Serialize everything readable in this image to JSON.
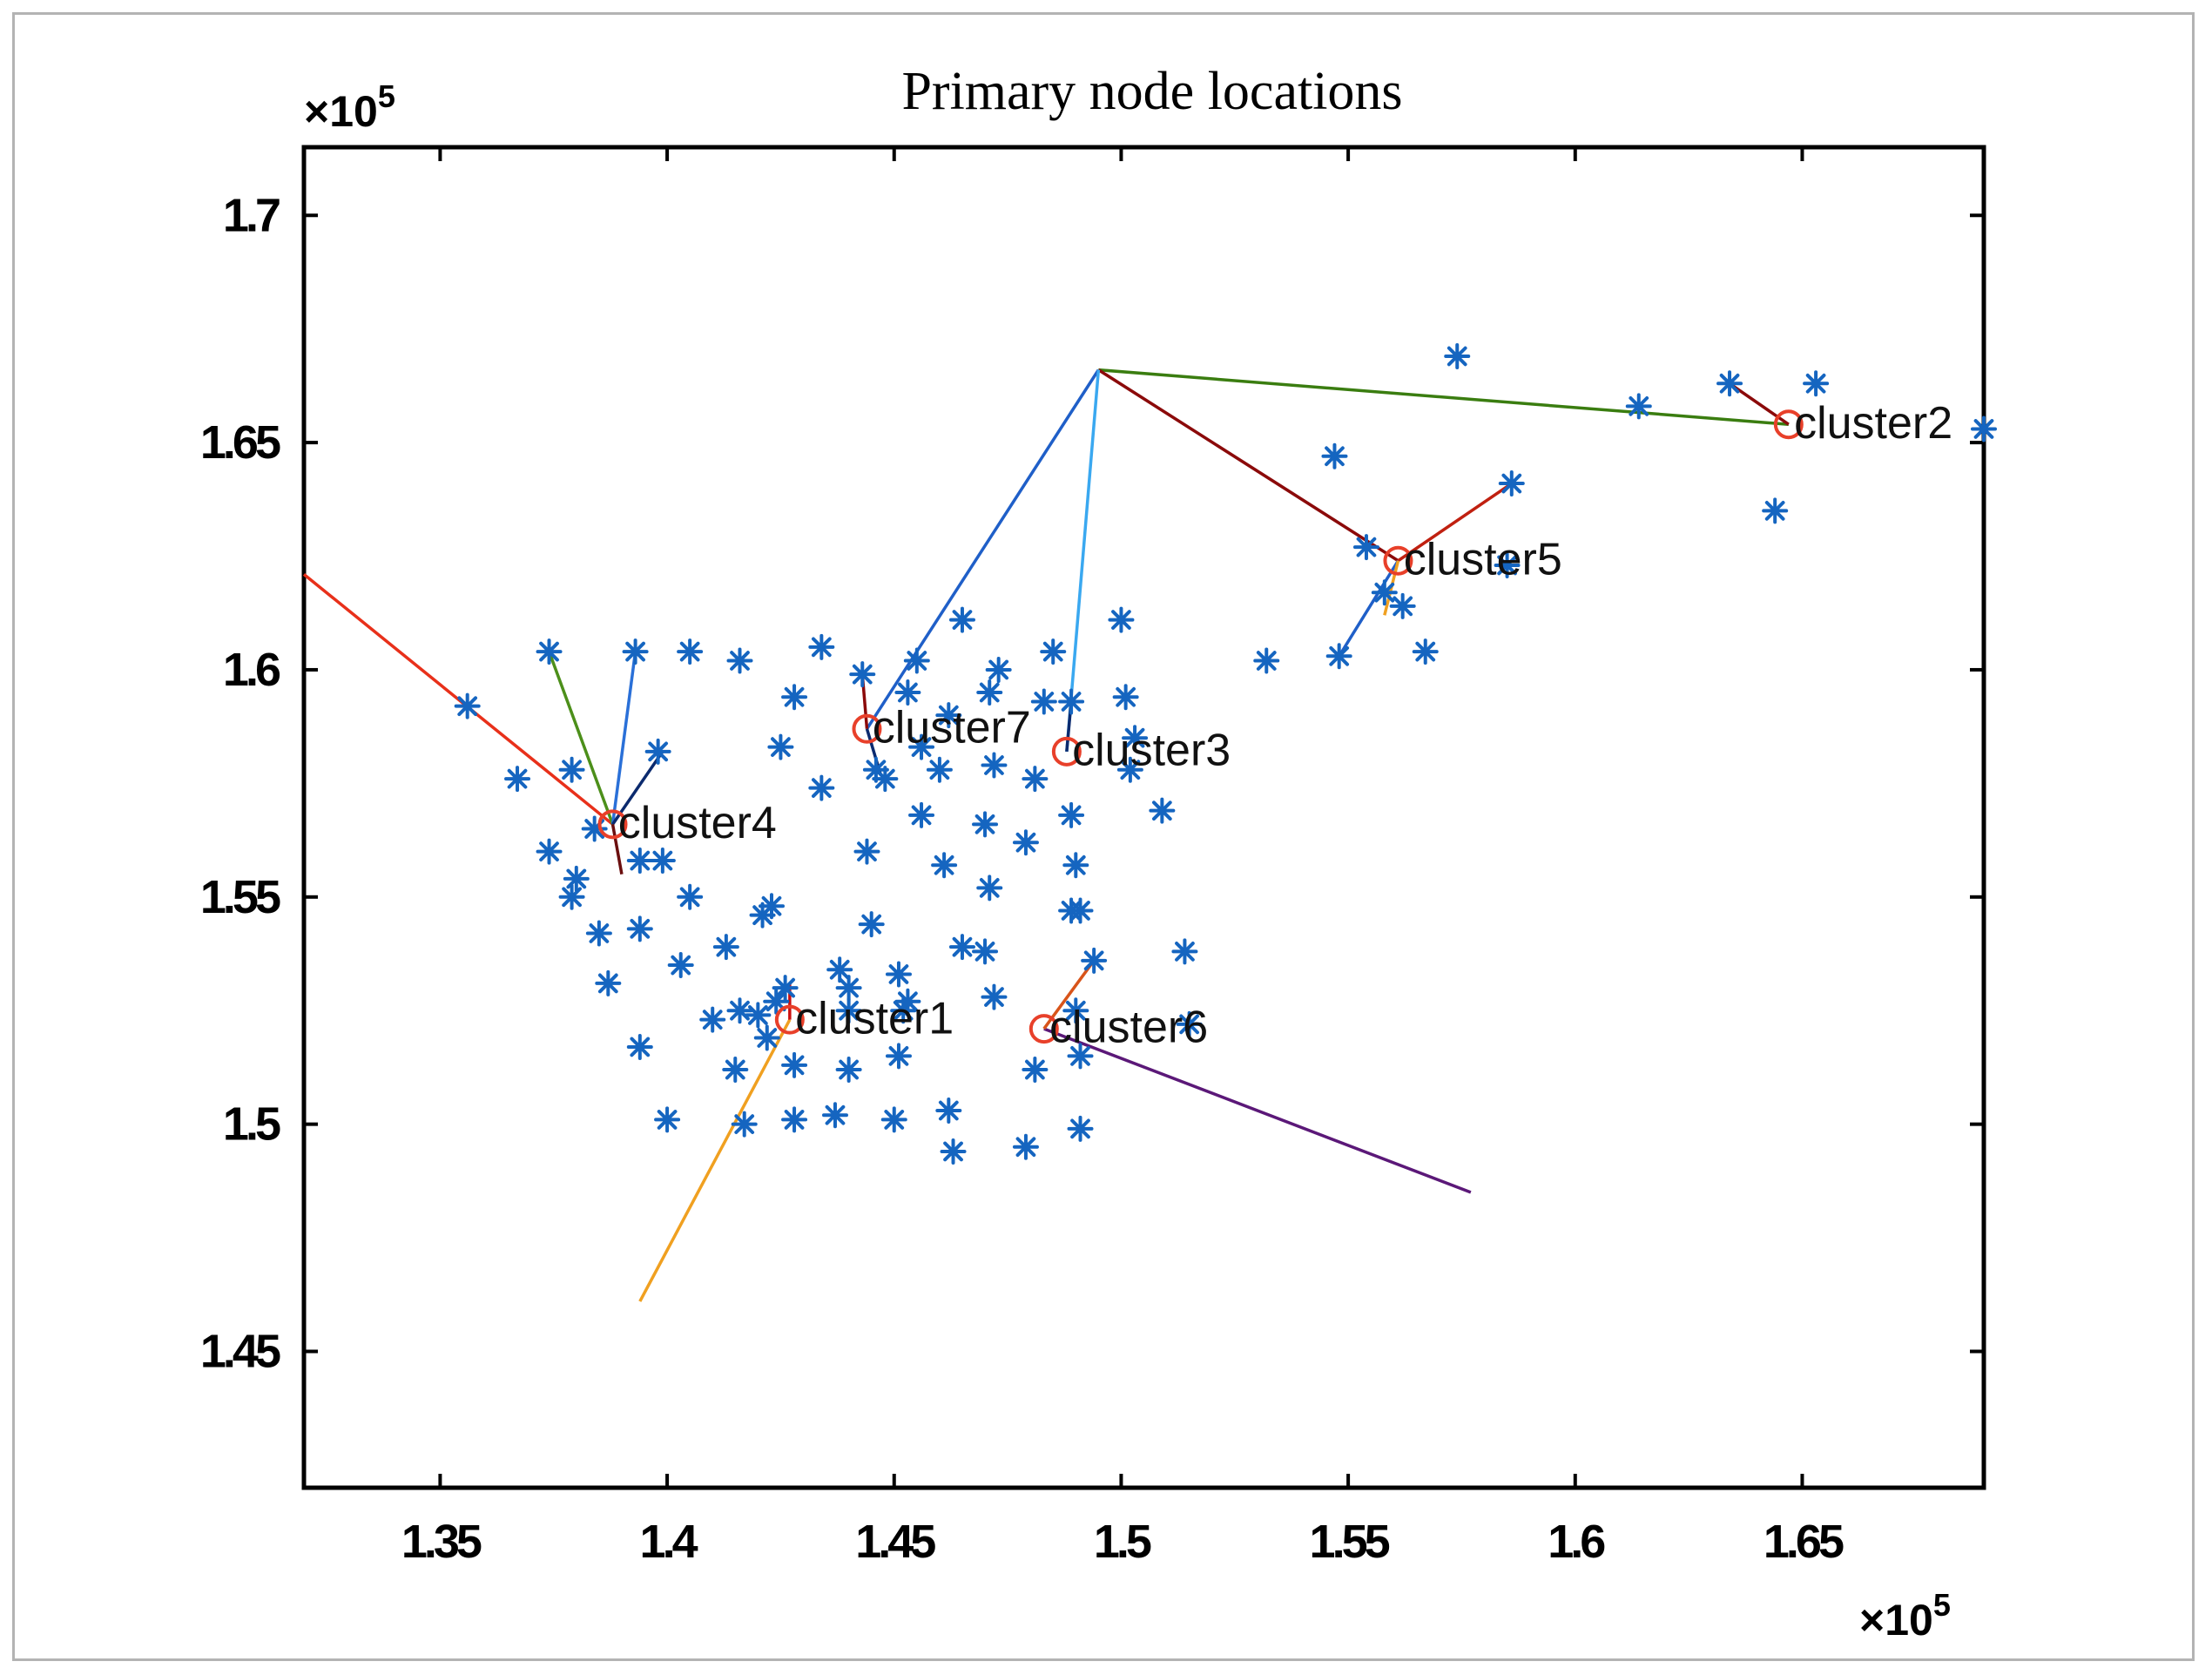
{
  "chart_data": {
    "type": "scatter",
    "title": "Primary node locations",
    "xlabel": "",
    "ylabel": "",
    "xlim": [
      132000,
      169000
    ],
    "ylim": [
      142000,
      171500
    ],
    "grid": false,
    "x_ticks": [
      {
        "value": 135000,
        "label": "1.35"
      },
      {
        "value": 140000,
        "label": "1.4"
      },
      {
        "value": 145000,
        "label": "1.45"
      },
      {
        "value": 150000,
        "label": "1.5"
      },
      {
        "value": 155000,
        "label": "1.55"
      },
      {
        "value": 160000,
        "label": "1.6"
      },
      {
        "value": 165000,
        "label": "1.65"
      }
    ],
    "y_ticks": [
      {
        "value": 145000,
        "label": "1.45"
      },
      {
        "value": 150000,
        "label": "1.5"
      },
      {
        "value": 155000,
        "label": "1.55"
      },
      {
        "value": 160000,
        "label": "1.6"
      },
      {
        "value": 165000,
        "label": "1.65"
      },
      {
        "value": 170000,
        "label": "1.7"
      }
    ],
    "x_multiplier": {
      "prefix": "×10",
      "exponent": "5"
    },
    "y_multiplier": {
      "prefix": "×10",
      "exponent": "5"
    },
    "node_color": "#1565c0",
    "cluster_color": "#e8402a",
    "nodes": [
      [
        135600,
        159200
      ],
      [
        137400,
        160400
      ],
      [
        139300,
        160400
      ],
      [
        140500,
        160400
      ],
      [
        141600,
        160200
      ],
      [
        136700,
        157600
      ],
      [
        137900,
        157800
      ],
      [
        139800,
        158200
      ],
      [
        137400,
        156000
      ],
      [
        138000,
        155400
      ],
      [
        138400,
        156500
      ],
      [
        139900,
        155800
      ],
      [
        140500,
        155000
      ],
      [
        137900,
        155000
      ],
      [
        138500,
        154200
      ],
      [
        139400,
        154300
      ],
      [
        138700,
        153100
      ],
      [
        140300,
        153500
      ],
      [
        141300,
        153900
      ],
      [
        142100,
        154600
      ],
      [
        142300,
        154800
      ],
      [
        139400,
        151700
      ],
      [
        140000,
        150100
      ],
      [
        141000,
        152300
      ],
      [
        141600,
        152500
      ],
      [
        141500,
        151200
      ],
      [
        142000,
        152400
      ],
      [
        141700,
        150000
      ],
      [
        142400,
        152700
      ],
      [
        142600,
        153000
      ],
      [
        142200,
        151900
      ],
      [
        142800,
        151300
      ],
      [
        142800,
        150100
      ],
      [
        143700,
        150200
      ],
      [
        144000,
        151200
      ],
      [
        144000,
        152500
      ],
      [
        143800,
        153400
      ],
      [
        144000,
        153000
      ],
      [
        144500,
        154400
      ],
      [
        145200,
        152500
      ],
      [
        145000,
        150100
      ],
      [
        145100,
        151500
      ],
      [
        145300,
        152700
      ],
      [
        145100,
        153300
      ],
      [
        146200,
        150300
      ],
      [
        146300,
        149400
      ],
      [
        146500,
        153900
      ],
      [
        147000,
        153800
      ],
      [
        147100,
        155200
      ],
      [
        147200,
        152800
      ],
      [
        146100,
        155700
      ],
      [
        144400,
        156000
      ],
      [
        143400,
        157400
      ],
      [
        144600,
        157800
      ],
      [
        145600,
        156800
      ],
      [
        146000,
        157800
      ],
      [
        147200,
        157900
      ],
      [
        147900,
        156200
      ],
      [
        147000,
        156600
      ],
      [
        148100,
        157600
      ],
      [
        148900,
        156800
      ],
      [
        149000,
        155700
      ],
      [
        148900,
        154700
      ],
      [
        149400,
        153600
      ],
      [
        148100,
        151200
      ],
      [
        149000,
        152500
      ],
      [
        149100,
        151500
      ],
      [
        147900,
        149500
      ],
      [
        149100,
        149900
      ],
      [
        151400,
        153800
      ],
      [
        150900,
        156900
      ],
      [
        150200,
        157800
      ],
      [
        150300,
        158500
      ],
      [
        150100,
        159400
      ],
      [
        148900,
        159300
      ],
      [
        148300,
        159300
      ],
      [
        148500,
        160400
      ],
      [
        147100,
        159500
      ],
      [
        146500,
        161100
      ],
      [
        145500,
        160200
      ],
      [
        145300,
        159500
      ],
      [
        144300,
        159900
      ],
      [
        143400,
        160500
      ],
      [
        142800,
        159400
      ],
      [
        142500,
        158300
      ],
      [
        145600,
        158300
      ],
      [
        146200,
        159000
      ],
      [
        150000,
        161100
      ],
      [
        153200,
        160200
      ],
      [
        154800,
        160300
      ],
      [
        156700,
        160400
      ],
      [
        155800,
        161700
      ],
      [
        156200,
        161400
      ],
      [
        155400,
        162700
      ],
      [
        154700,
        164700
      ],
      [
        157400,
        166900
      ],
      [
        158500,
        162300
      ],
      [
        158600,
        164100
      ],
      [
        161400,
        165800
      ],
      [
        163400,
        166300
      ],
      [
        165300,
        166300
      ],
      [
        164400,
        163500
      ],
      [
        169000,
        165300
      ],
      [
        151500,
        152200
      ],
      [
        147300,
        160000
      ],
      [
        144800,
        157600
      ],
      [
        149100,
        154700
      ],
      [
        139400,
        155800
      ]
    ],
    "hub": [
      149500,
      166600
    ],
    "clusters": [
      {
        "name": "cluster1",
        "x": 142700,
        "y": 152300,
        "label_dx": 120,
        "label_dy": -300
      },
      {
        "name": "cluster2",
        "x": 164700,
        "y": 165400,
        "label_dx": 120,
        "label_dy": -300
      },
      {
        "name": "cluster3",
        "x": 148800,
        "y": 158200,
        "label_dx": 120,
        "label_dy": -300
      },
      {
        "name": "cluster4",
        "x": 138800,
        "y": 156600,
        "label_dx": 120,
        "label_dy": -300
      },
      {
        "name": "cluster5",
        "x": 156100,
        "y": 162400,
        "label_dx": 120,
        "label_dy": -300
      },
      {
        "name": "cluster6",
        "x": 148300,
        "y": 152100,
        "label_dx": 120,
        "label_dy": -300
      },
      {
        "name": "cluster7",
        "x": 144400,
        "y": 158700,
        "label_dx": 120,
        "label_dy": -300
      }
    ],
    "links": [
      {
        "from": [
          149500,
          166600
        ],
        "to": [
          164700,
          165400
        ],
        "color": "#3a7d10"
      },
      {
        "from": [
          149500,
          166600
        ],
        "to": [
          156100,
          162400
        ],
        "color": "#8b0a0a"
      },
      {
        "from": [
          149500,
          166600
        ],
        "to": [
          144400,
          158700
        ],
        "color": "#1f5fc8"
      },
      {
        "from": [
          149500,
          166600
        ],
        "to": [
          148800,
          158200
        ],
        "color": "#3aa8f0"
      },
      {
        "from": [
          132000,
          162100
        ],
        "to": [
          138800,
          156600
        ],
        "color": "#e8301a"
      },
      {
        "from": [
          137400,
          160400
        ],
        "to": [
          138800,
          156600
        ],
        "color": "#4c8f1a"
      },
      {
        "from": [
          139300,
          160400
        ],
        "to": [
          138800,
          156600
        ],
        "color": "#2a70d8"
      },
      {
        "from": [
          139900,
          158200
        ],
        "to": [
          138800,
          156600
        ],
        "color": "#0b2a6e"
      },
      {
        "from": [
          139000,
          155500
        ],
        "to": [
          138800,
          156600
        ],
        "color": "#6b0f0f"
      },
      {
        "from": [
          157700,
          148500
        ],
        "to": [
          148300,
          152100
        ],
        "color": "#5b1878"
      },
      {
        "from": [
          149400,
          153600
        ],
        "to": [
          148300,
          152100
        ],
        "color": "#d8541a"
      },
      {
        "from": [
          139400,
          146100
        ],
        "to": [
          142700,
          152300
        ],
        "color": "#f0a020"
      },
      {
        "from": [
          142700,
          153100
        ],
        "to": [
          142700,
          152300
        ],
        "color": "#cc1010"
      },
      {
        "from": [
          164700,
          165400
        ],
        "to": [
          163400,
          166300
        ],
        "color": "#8b0a0a"
      },
      {
        "from": [
          158600,
          164100
        ],
        "to": [
          156100,
          162400
        ],
        "color": "#c02010"
      },
      {
        "from": [
          154800,
          160300
        ],
        "to": [
          156100,
          162400
        ],
        "color": "#1f5fc8"
      },
      {
        "from": [
          155800,
          161200
        ],
        "to": [
          156100,
          162400
        ],
        "color": "#f0a020"
      },
      {
        "from": [
          144300,
          159900
        ],
        "to": [
          144400,
          158700
        ],
        "color": "#8b0a0a"
      },
      {
        "from": [
          144700,
          157700
        ],
        "to": [
          144400,
          158700
        ],
        "color": "#0b2a6e"
      },
      {
        "from": [
          148900,
          159300
        ],
        "to": [
          148800,
          158200
        ],
        "color": "#0b2a6e"
      }
    ]
  }
}
